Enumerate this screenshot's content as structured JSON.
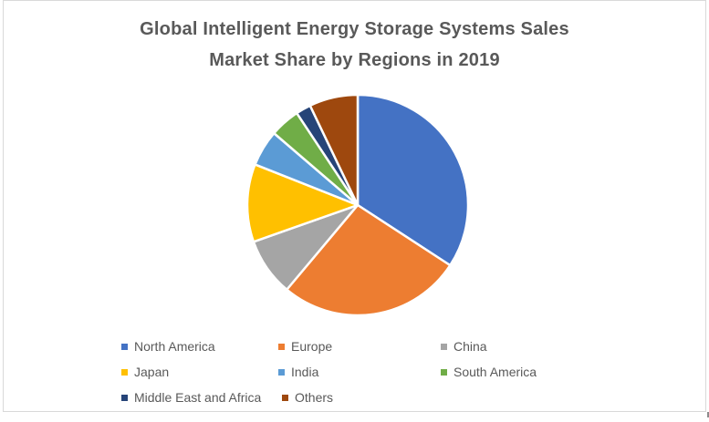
{
  "title": {
    "line1": "Global Intelligent Energy Storage Systems Sales",
    "line2": "Market Share by Regions in 2019"
  },
  "frame": {
    "border_color": "#D9D9D9",
    "background": "#FFFFFF",
    "title_color": "#595959",
    "legend_text_color": "#595959"
  },
  "chart_data": {
    "type": "pie",
    "title": "Global Intelligent Energy Storage Systems Sales Market Share by Regions in 2019",
    "legend_position": "bottom",
    "start_angle_deg": 0,
    "direction": "clockwise",
    "slice_border_color": "#FFFFFF",
    "slices": [
      {
        "label": "North America",
        "value": 34.2,
        "color": "#4472C4"
      },
      {
        "label": "Europe",
        "value": 26.9,
        "color": "#ED7D31"
      },
      {
        "label": "China",
        "value": 8.5,
        "color": "#A5A5A5"
      },
      {
        "label": "Japan",
        "value": 11.4,
        "color": "#FFC000"
      },
      {
        "label": "India",
        "value": 5.3,
        "color": "#5B9BD5"
      },
      {
        "label": "South America",
        "value": 4.4,
        "color": "#70AD47"
      },
      {
        "label": "Middle East and Africa",
        "value": 2.2,
        "color": "#264478"
      },
      {
        "label": "Others",
        "value": 7.1,
        "color": "#9E480E"
      }
    ]
  }
}
